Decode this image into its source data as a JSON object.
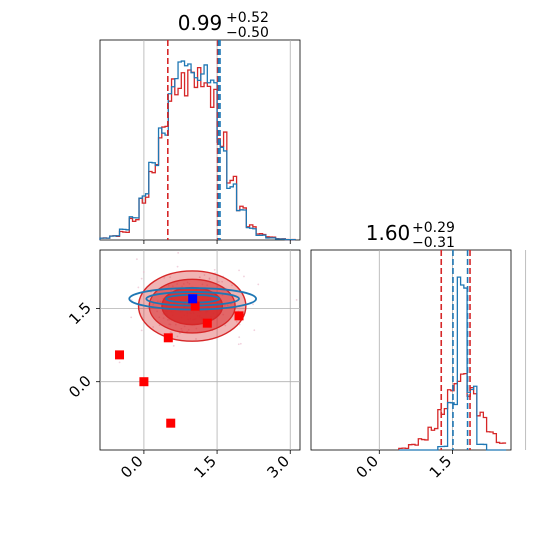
{
  "chart_data": [
    {
      "type": "histogram",
      "panel": "marginal-param-1",
      "title": {
        "value": "0.99",
        "sup": "+0.52",
        "sub": "−0.50"
      },
      "xlim": [
        -0.9,
        3.2
      ],
      "grid": true,
      "x": [
        -0.9,
        -0.7,
        -0.5,
        -0.3,
        -0.1,
        0.1,
        0.3,
        0.5,
        0.7,
        0.9,
        1.1,
        1.3,
        1.5,
        1.7,
        1.9,
        2.1,
        2.3,
        2.5,
        2.7,
        2.9,
        3.1
      ],
      "series": [
        {
          "color": "#d62728",
          "values": [
            0.01,
            0.02,
            0.04,
            0.1,
            0.2,
            0.35,
            0.55,
            0.75,
            0.78,
            0.82,
            0.8,
            0.72,
            0.5,
            0.3,
            0.16,
            0.07,
            0.03,
            0.015,
            0.006,
            0.002
          ]
        },
        {
          "color": "#1f77b4",
          "values": [
            0.01,
            0.02,
            0.05,
            0.12,
            0.22,
            0.36,
            0.57,
            0.78,
            0.83,
            0.88,
            0.86,
            0.74,
            0.48,
            0.28,
            0.14,
            0.06,
            0.025,
            0.01,
            0.005,
            0.002
          ]
        }
      ],
      "quantile_lines": [
        {
          "x": 0.49,
          "color": "#d62728"
        },
        {
          "x": 1.51,
          "color": "#d62728"
        },
        {
          "x": 1.53,
          "color": "#1f77b4"
        },
        {
          "x": 1.56,
          "color": "#1f77b4"
        }
      ]
    },
    {
      "type": "histogram",
      "panel": "marginal-param-2",
      "title": {
        "value": "1.60",
        "sup": "+0.29",
        "sub": "−0.31"
      },
      "xlim": [
        -1.4,
        2.7
      ],
      "grid": true,
      "xticks": [
        "0.0",
        "1.5"
      ],
      "x": [
        0.4,
        0.6,
        0.8,
        1.0,
        1.2,
        1.4,
        1.6,
        1.8,
        2.0,
        2.2,
        2.4,
        2.6
      ],
      "series": [
        {
          "color": "#d62728",
          "values": [
            0.01,
            0.03,
            0.06,
            0.12,
            0.22,
            0.35,
            0.42,
            0.33,
            0.2,
            0.1,
            0.04,
            0.01
          ]
        },
        {
          "color": "#1f77b4",
          "values": [
            0.0,
            0.0,
            0.0,
            0.0,
            0.02,
            0.25,
            1.0,
            0.35,
            0.03,
            0.0,
            0.0,
            0.0
          ]
        }
      ],
      "quantile_lines": [
        {
          "x": 1.27,
          "color": "#d62728"
        },
        {
          "x": 1.51,
          "color": "#1f77b4"
        },
        {
          "x": 1.81,
          "color": "#1f77b4"
        },
        {
          "x": 1.86,
          "color": "#d62728"
        }
      ]
    },
    {
      "type": "scatter",
      "panel": "joint-param-1-param-2",
      "xlim": [
        -0.9,
        3.2
      ],
      "ylim": [
        -1.4,
        2.7
      ],
      "grid": true,
      "xticks": [
        "0.0",
        "1.5",
        "3.0"
      ],
      "yticks": [
        "0.0",
        "1.5"
      ],
      "density_levels_red": [
        {
          "cx": 0.99,
          "cy": 1.55,
          "rx": 1.1,
          "ry": 0.72,
          "opacity": 0.35
        },
        {
          "cx": 0.99,
          "cy": 1.55,
          "rx": 0.88,
          "ry": 0.55,
          "opacity": 0.55
        },
        {
          "cx": 0.99,
          "cy": 1.55,
          "rx": 0.62,
          "ry": 0.38,
          "opacity": 0.8
        }
      ],
      "density_levels_blue": [
        {
          "cx": 1.0,
          "cy": 1.7,
          "rx": 1.3,
          "ry": 0.22
        },
        {
          "cx": 1.0,
          "cy": 1.7,
          "rx": 0.95,
          "ry": 0.14
        },
        {
          "cx": 1.0,
          "cy": 1.7,
          "rx": 0.55,
          "ry": 0.08
        }
      ],
      "red_points": [
        {
          "x": -0.5,
          "y": 0.55
        },
        {
          "x": 0.0,
          "y": 0.0
        },
        {
          "x": 0.55,
          "y": -0.85
        },
        {
          "x": 0.5,
          "y": 0.9
        },
        {
          "x": 1.05,
          "y": 1.55
        },
        {
          "x": 1.3,
          "y": 1.2
        },
        {
          "x": 1.95,
          "y": 1.35
        }
      ],
      "blue_points": [
        {
          "x": 1.0,
          "y": 1.7
        }
      ],
      "colors": {
        "red": "#d62728",
        "blue": "#1f77b4",
        "blue_marker": "#0000ff",
        "red_marker": "#ff0000"
      }
    }
  ]
}
